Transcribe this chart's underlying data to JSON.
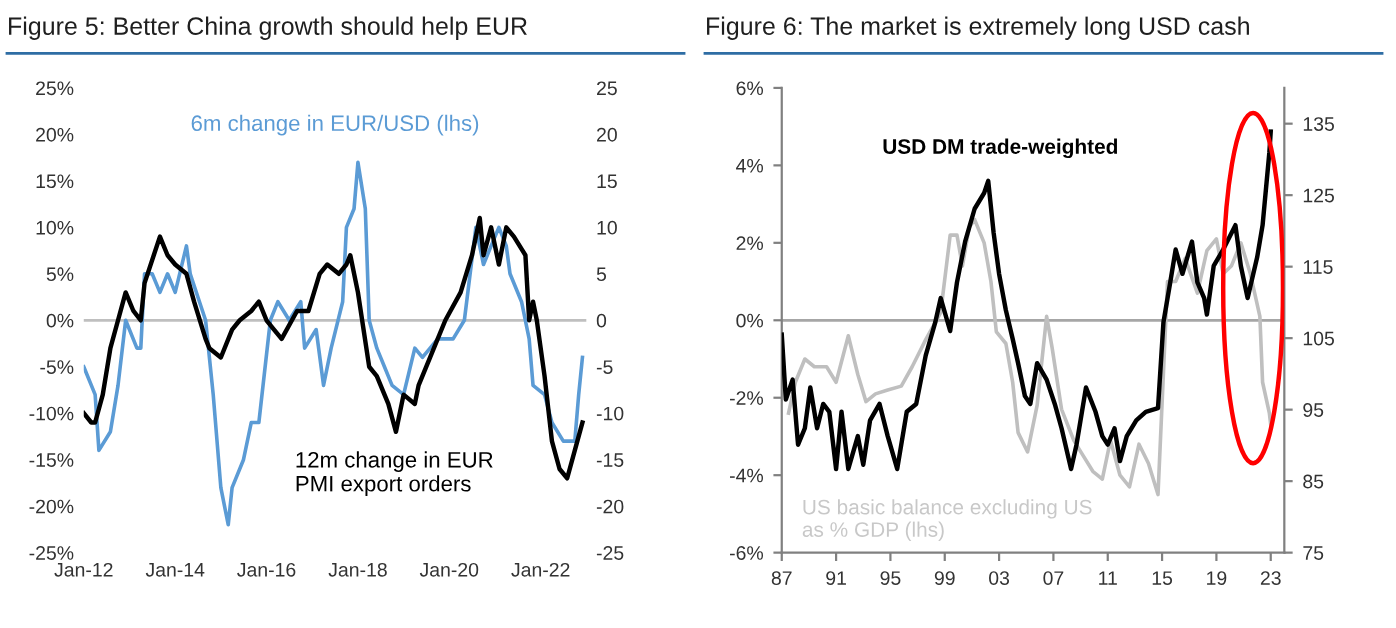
{
  "chart_data": [
    {
      "type": "line",
      "title": "Figure 5: Better China growth should help EUR",
      "legend": false,
      "grid": false,
      "xlim": [
        "2012-01",
        "2023-01"
      ],
      "xticks": [
        {
          "value": "2012-01",
          "label": "Jan-12"
        },
        {
          "value": "2014-01",
          "label": "Jan-14"
        },
        {
          "value": "2016-01",
          "label": "Jan-16"
        },
        {
          "value": "2018-01",
          "label": "Jan-18"
        },
        {
          "value": "2020-01",
          "label": "Jan-20"
        },
        {
          "value": "2022-01",
          "label": "Jan-22"
        }
      ],
      "ylim": [
        -25,
        25
      ],
      "yticks": [
        {
          "value": -25,
          "label": "-25%"
        },
        {
          "value": -20,
          "label": "-20%"
        },
        {
          "value": -15,
          "label": "-15%"
        },
        {
          "value": -10,
          "label": "-10%"
        },
        {
          "value": -5,
          "label": "-5%"
        },
        {
          "value": 0,
          "label": "0%"
        },
        {
          "value": 5,
          "label": "5%"
        },
        {
          "value": 10,
          "label": "10%"
        },
        {
          "value": 15,
          "label": "15%"
        },
        {
          "value": 20,
          "label": "20%"
        },
        {
          "value": 25,
          "label": "25%"
        }
      ],
      "y2lim": [
        -25,
        25
      ],
      "y2ticks": [
        -25,
        -20,
        -15,
        -10,
        -5,
        0,
        5,
        10,
        15,
        20,
        25
      ],
      "ref_lines": [
        {
          "axis": "y",
          "value": 0,
          "color": "#bfbfbf"
        }
      ],
      "series": [
        {
          "name": "6m change in EUR/USD (lhs)",
          "color": "#5b9bd5",
          "x": [
            "2012-01",
            "2012-04",
            "2012-05",
            "2012-08",
            "2012-10",
            "2012-12",
            "2013-03",
            "2013-04",
            "2013-05",
            "2013-07",
            "2013-09",
            "2013-11",
            "2014-01",
            "2014-04",
            "2014-05",
            "2014-09",
            "2014-11",
            "2015-01",
            "2015-03",
            "2015-04",
            "2015-07",
            "2015-09",
            "2015-11",
            "2016-02",
            "2016-04",
            "2016-07",
            "2016-10",
            "2016-11",
            "2017-02",
            "2017-04",
            "2017-06",
            "2017-09",
            "2017-10",
            "2017-12",
            "2018-01",
            "2018-03",
            "2018-04",
            "2018-06",
            "2018-08",
            "2018-10",
            "2019-01",
            "2019-04",
            "2019-06",
            "2019-08",
            "2019-10",
            "2020-02",
            "2020-05",
            "2020-08",
            "2020-10",
            "2020-12",
            "2021-02",
            "2021-04",
            "2021-05",
            "2021-08",
            "2021-10",
            "2021-11",
            "2022-02",
            "2022-04",
            "2022-07",
            "2022-10",
            "2022-11",
            "2022-12"
          ],
          "values": [
            -5,
            -8,
            -14,
            -12,
            -7,
            0,
            -3,
            -3,
            5,
            5,
            3,
            5,
            3,
            8,
            5,
            0,
            -8,
            -18,
            -22,
            -18,
            -15,
            -11,
            -11,
            0,
            2,
            0,
            2,
            -3,
            -1,
            -7,
            -3,
            2,
            10,
            12,
            17,
            12,
            0,
            -3,
            -5,
            -7,
            -8,
            -3,
            -4,
            -3,
            -2,
            -2,
            0,
            10,
            6,
            8,
            10,
            8,
            5,
            2,
            -2,
            -7,
            -8,
            -11,
            -13,
            -13,
            -8,
            -4
          ]
        },
        {
          "name": "12m change in EUR\nPMI export orders",
          "color": "#000000",
          "axis": "y2",
          "x": [
            "2012-01",
            "2012-03",
            "2012-04",
            "2012-06",
            "2012-08",
            "2012-10",
            "2012-12",
            "2013-02",
            "2013-04",
            "2013-05",
            "2013-09",
            "2013-11",
            "2014-01",
            "2014-04",
            "2014-06",
            "2014-09",
            "2014-10",
            "2015-01",
            "2015-04",
            "2015-06",
            "2015-09",
            "2015-11",
            "2016-01",
            "2016-03",
            "2016-05",
            "2016-09",
            "2016-12",
            "2017-03",
            "2017-05",
            "2017-08",
            "2017-10",
            "2017-11",
            "2018-01",
            "2018-04",
            "2018-06",
            "2018-09",
            "2018-11",
            "2019-01",
            "2019-04",
            "2019-05",
            "2019-08",
            "2019-12",
            "2020-04",
            "2020-07",
            "2020-09",
            "2020-10",
            "2020-12",
            "2021-02",
            "2021-04",
            "2021-06",
            "2021-09",
            "2021-10",
            "2021-11",
            "2021-12",
            "2022-02",
            "2022-04",
            "2022-06",
            "2022-08",
            "2022-10",
            "2022-12"
          ],
          "values": [
            -10,
            -11,
            -11,
            -8,
            -3,
            0,
            3,
            1,
            0,
            4,
            9,
            7,
            6,
            5,
            2,
            -2,
            -3,
            -4,
            -1,
            0,
            1,
            2,
            0,
            -1,
            -2,
            1,
            1,
            5,
            6,
            5,
            6,
            7,
            3,
            -5,
            -6,
            -9,
            -12,
            -8,
            -9,
            -7,
            -4,
            0,
            3,
            7,
            11,
            7,
            10,
            6,
            10,
            9,
            7,
            0,
            2,
            0,
            -6,
            -13,
            -16,
            -17,
            -14,
            -11
          ]
        }
      ]
    },
    {
      "type": "line",
      "title": "Figure 6: The market is extremely long USD cash",
      "legend": false,
      "grid": false,
      "xlim": [
        1987,
        2024
      ],
      "xticks": [
        {
          "value": 1987,
          "label": "87"
        },
        {
          "value": 1991,
          "label": "91"
        },
        {
          "value": 1995,
          "label": "95"
        },
        {
          "value": 1999,
          "label": "99"
        },
        {
          "value": 2003,
          "label": "03"
        },
        {
          "value": 2007,
          "label": "07"
        },
        {
          "value": 2011,
          "label": "11"
        },
        {
          "value": 2015,
          "label": "15"
        },
        {
          "value": 2019,
          "label": "19"
        },
        {
          "value": 2023,
          "label": "23"
        }
      ],
      "ylim": [
        -6,
        6
      ],
      "yticks": [
        {
          "value": -6,
          "label": "-6%"
        },
        {
          "value": -4,
          "label": "-4%"
        },
        {
          "value": -2,
          "label": "-2%"
        },
        {
          "value": 0,
          "label": "0%"
        },
        {
          "value": 2,
          "label": "2%"
        },
        {
          "value": 4,
          "label": "4%"
        },
        {
          "value": 6,
          "label": "6%"
        }
      ],
      "y2lim": [
        75,
        140
      ],
      "y2ticks": [
        75,
        85,
        95,
        105,
        115,
        125,
        135
      ],
      "ref_lines": [
        {
          "axis": "y",
          "value": 0,
          "color": "#a6a6a6"
        }
      ],
      "series": [
        {
          "name": "US basic balance excluding US\nas % GDP (lhs)",
          "color": "#bfbfbf",
          "x": [
            1987.5,
            1988.0,
            1988.7,
            1989.4,
            1990.3,
            1991.0,
            1991.9,
            1992.6,
            1993.2,
            1993.9,
            1994.8,
            1995.8,
            1996.6,
            1997.6,
            1998.7,
            1999.4,
            1999.9,
            2000.3,
            2000.8,
            2001.2,
            2001.9,
            2002.4,
            2002.8,
            2003.5,
            2004.0,
            2004.4,
            2005.1,
            2005.8,
            2006.5,
            2006.9,
            2007.6,
            2008.5,
            2009.2,
            2009.9,
            2010.6,
            2011.2,
            2011.9,
            2012.6,
            2013.3,
            2014.0,
            2014.7,
            2015.4,
            2016.0,
            2016.7,
            2017.6,
            2018.3,
            2019.0,
            2019.5,
            2020.1,
            2020.8,
            2021.5,
            2022.2,
            2022.4,
            2022.9,
            2023.0
          ],
          "values": [
            -2.4,
            -1.6,
            -1.0,
            -1.2,
            -1.2,
            -1.6,
            -0.4,
            -1.4,
            -2.1,
            -1.9,
            -1.8,
            -1.7,
            -1.2,
            -0.5,
            0.2,
            2.2,
            2.2,
            1.4,
            2.4,
            2.6,
            2.0,
            1.0,
            -0.3,
            -0.6,
            -1.6,
            -2.9,
            -3.4,
            -2.2,
            0.1,
            -0.7,
            -2.3,
            -3.1,
            -3.5,
            -3.9,
            -4.1,
            -3.1,
            -4.0,
            -4.3,
            -3.2,
            -3.7,
            -4.5,
            1.0,
            1.0,
            1.6,
            0.7,
            1.8,
            2.1,
            1.2,
            1.4,
            2.0,
            1.2,
            0.1,
            -1.6,
            -2.4,
            -2.7
          ]
        },
        {
          "name": "USD DM trade-weighted",
          "color": "#000000",
          "axis": "y2",
          "x": [
            1987.0,
            1987.3,
            1987.8,
            1988.2,
            1988.7,
            1989.1,
            1989.6,
            1990.05,
            1990.5,
            1991.0,
            1991.4,
            1991.9,
            1992.6,
            1993.0,
            1993.5,
            1994.2,
            1994.8,
            1995.5,
            1996.2,
            1996.9,
            1997.6,
            1998.3,
            1998.7,
            1999.4,
            1999.9,
            2000.5,
            2001.2,
            2001.9,
            2002.2,
            2002.6,
            2003.0,
            2003.5,
            2004.0,
            2004.4,
            2004.9,
            2005.3,
            2005.8,
            2006.5,
            2007.1,
            2007.6,
            2008.3,
            2008.7,
            2009.4,
            2010.1,
            2010.6,
            2011.0,
            2011.5,
            2011.9,
            2012.4,
            2013.1,
            2013.8,
            2014.7,
            2015.1,
            2015.6,
            2016.0,
            2016.5,
            2017.2,
            2017.6,
            2018.1,
            2018.3,
            2018.8,
            2019.5,
            2020.4,
            2020.8,
            2021.3,
            2022.0,
            2022.4,
            2022.9,
            2023.0
          ],
          "values": [
            105.5,
            96.4,
            99.2,
            90.1,
            92.4,
            98.1,
            92.4,
            95.8,
            94.7,
            86.7,
            94.7,
            86.7,
            91.3,
            87.3,
            93.5,
            95.8,
            91.3,
            86.7,
            94.7,
            95.8,
            102.6,
            107.2,
            110.6,
            106.0,
            112.8,
            118.5,
            123.1,
            125.3,
            127.0,
            119.7,
            114.0,
            108.9,
            104.9,
            101.5,
            96.9,
            95.8,
            101.5,
            99.2,
            95.8,
            92.4,
            86.7,
            90.1,
            98.1,
            94.7,
            91.3,
            90.1,
            92.4,
            87.8,
            91.3,
            93.5,
            94.7,
            95.2,
            107.2,
            112.8,
            117.4,
            114.0,
            118.5,
            112.8,
            110.6,
            108.3,
            115.1,
            117.4,
            120.8,
            115.1,
            110.6,
            116.3,
            120.8,
            131.0,
            133.9
          ]
        }
      ]
    }
  ]
}
